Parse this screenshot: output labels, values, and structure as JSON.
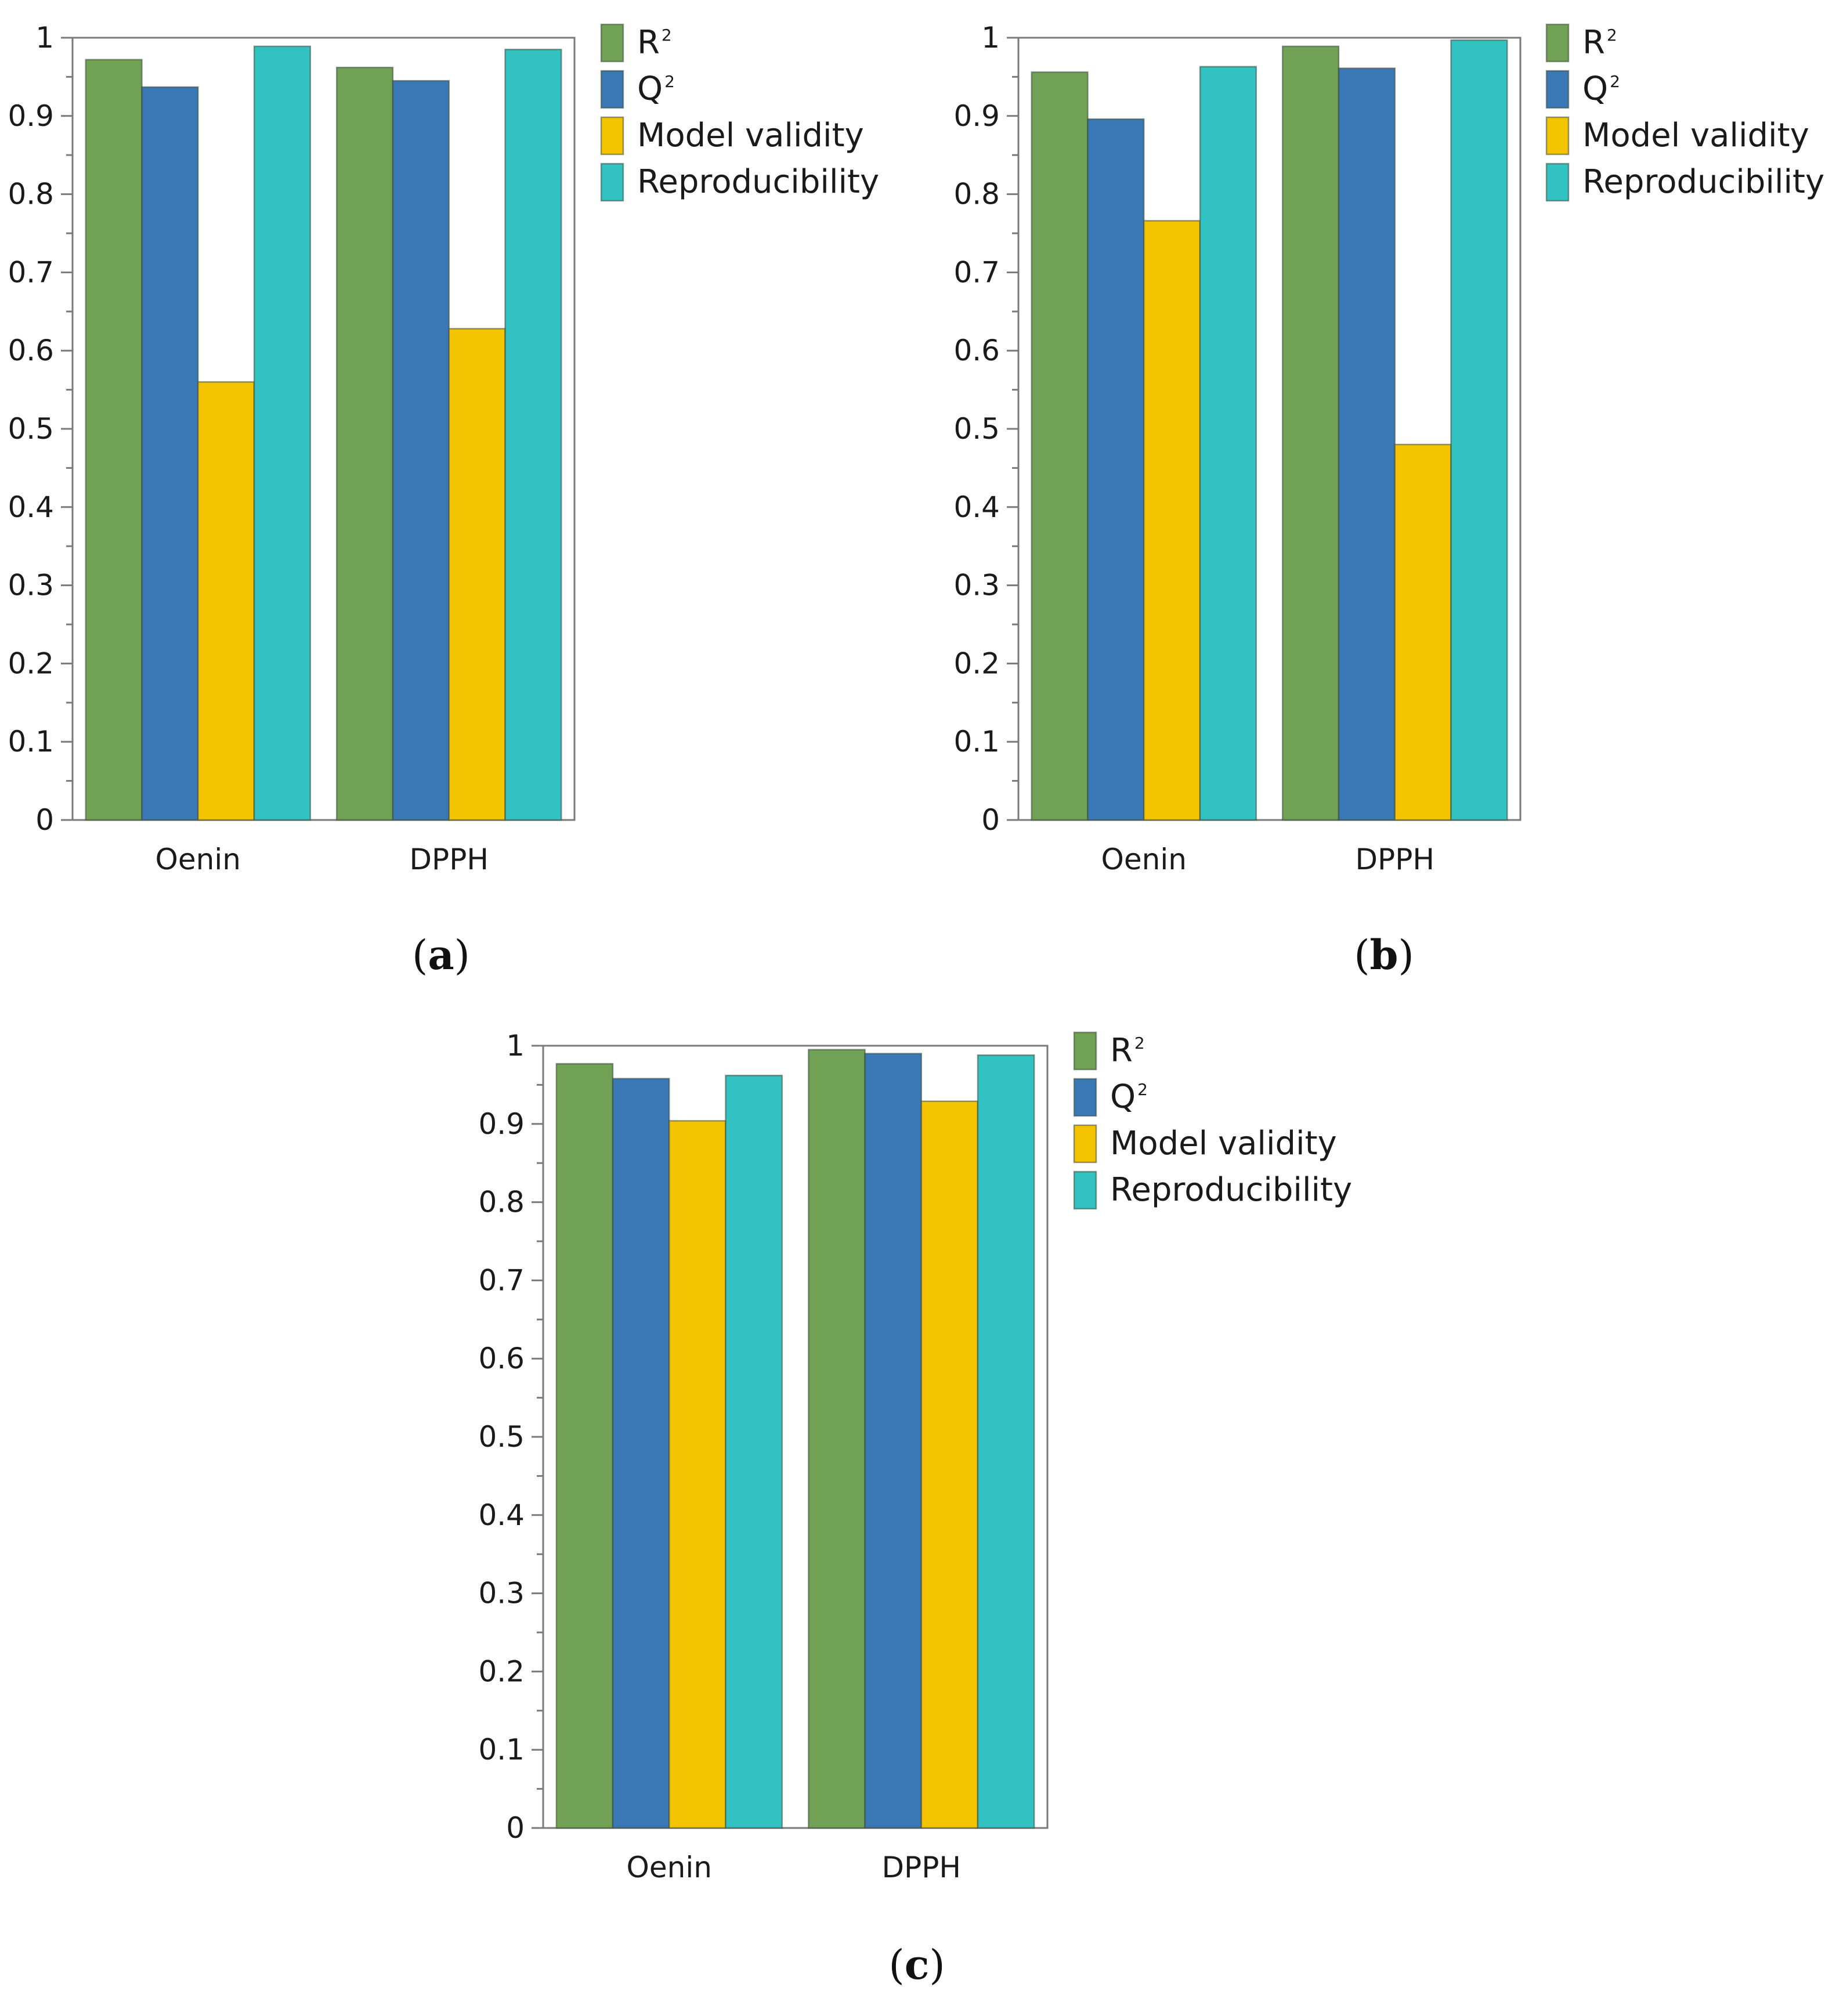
{
  "colors": {
    "r2": "#70A154",
    "q2": "#3A78B5",
    "model_validity": "#F5C400",
    "reproducibility": "#31C2C1",
    "axis": "#7a7a7a",
    "bar_stroke": "#2f4f2f"
  },
  "chart_data": [
    {
      "type": "bar",
      "label": "a",
      "title": "",
      "xlabel": "",
      "ylabel": "",
      "ylim": [
        0,
        1
      ],
      "yticks": [
        "0",
        "0.1",
        "0.2",
        "0.3",
        "0.4",
        "0.5",
        "0.6",
        "0.7",
        "0.8",
        "0.9",
        "1"
      ],
      "categories": [
        "Oenin",
        "DPPH"
      ],
      "series": [
        {
          "name": "R",
          "sup": "2",
          "values": [
            0.972,
            0.962
          ]
        },
        {
          "name": "Q",
          "sup": "2",
          "values": [
            0.937,
            0.945
          ]
        },
        {
          "name": "Model validity",
          "sup": "",
          "values": [
            0.56,
            0.628
          ]
        },
        {
          "name": "Reproducibility",
          "sup": "",
          "values": [
            0.989,
            0.985
          ]
        }
      ]
    },
    {
      "type": "bar",
      "label": "b",
      "title": "",
      "xlabel": "",
      "ylabel": "",
      "ylim": [
        0,
        1
      ],
      "yticks": [
        "0",
        "0.1",
        "0.2",
        "0.3",
        "0.4",
        "0.5",
        "0.6",
        "0.7",
        "0.8",
        "0.9",
        "1"
      ],
      "categories": [
        "Oenin",
        "DPPH"
      ],
      "series": [
        {
          "name": "R",
          "sup": "2",
          "values": [
            0.956,
            0.989
          ]
        },
        {
          "name": "Q",
          "sup": "2",
          "values": [
            0.896,
            0.961
          ]
        },
        {
          "name": "Model validity",
          "sup": "",
          "values": [
            0.766,
            0.48
          ]
        },
        {
          "name": "Reproducibility",
          "sup": "",
          "values": [
            0.963,
            0.997
          ]
        }
      ]
    },
    {
      "type": "bar",
      "label": "c",
      "title": "",
      "xlabel": "",
      "ylabel": "",
      "ylim": [
        0,
        1
      ],
      "yticks": [
        "0",
        "0.1",
        "0.2",
        "0.3",
        "0.4",
        "0.5",
        "0.6",
        "0.7",
        "0.8",
        "0.9",
        "1"
      ],
      "categories": [
        "Oenin",
        "DPPH"
      ],
      "series": [
        {
          "name": "R",
          "sup": "2",
          "values": [
            0.977,
            0.995
          ]
        },
        {
          "name": "Q",
          "sup": "2",
          "values": [
            0.958,
            0.99
          ]
        },
        {
          "name": "Model validity",
          "sup": "",
          "values": [
            0.904,
            0.929
          ]
        },
        {
          "name": "Reproducibility",
          "sup": "",
          "values": [
            0.962,
            0.988
          ]
        }
      ]
    }
  ]
}
